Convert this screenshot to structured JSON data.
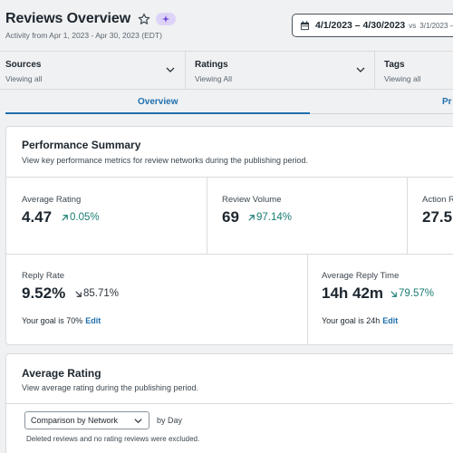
{
  "header": {
    "title": "Reviews Overview",
    "subtitle": "Activity from Apr 1, 2023 - Apr 30, 2023 (EDT)",
    "date_range": "4/1/2023 – 4/30/2023",
    "comparison_prefix": "vs",
    "comparison_range": "3/1/2023 –",
    "icons": {
      "favorite": "star-outline-icon",
      "ai": "sparkle-icon",
      "calendar": "calendar-icon"
    }
  },
  "filters": [
    {
      "label": "Sources",
      "value": "Viewing all"
    },
    {
      "label": "Ratings",
      "value": "Viewing All"
    },
    {
      "label": "Tags",
      "value": "Viewing all"
    }
  ],
  "tabs": [
    {
      "label": "Overview",
      "active": true
    },
    {
      "label": "Pr",
      "active": false
    }
  ],
  "performance": {
    "title": "Performance Summary",
    "description": "View key performance metrics for review networks during the publishing period.",
    "metrics": [
      {
        "label": "Average Rating",
        "value": "4.47",
        "change": "0.05%",
        "direction": "up"
      },
      {
        "label": "Review Volume",
        "value": "69",
        "change": "97.14%",
        "direction": "up"
      },
      {
        "label": "Action R",
        "value": "27.5",
        "change": "",
        "direction": ""
      },
      {
        "label": "Reply Rate",
        "value": "9.52%",
        "change": "85.71%",
        "direction": "down",
        "goal_text": "Your goal is 70%",
        "goal_edit": "Edit"
      },
      {
        "label": "Average Reply Time",
        "value": "14h 42m",
        "change": "79.57%",
        "direction": "down",
        "goal_text": "Your goal is 24h",
        "goal_edit": "Edit"
      }
    ]
  },
  "average_rating": {
    "title": "Average Rating",
    "description": "View average rating during the publishing period.",
    "select_value": "Comparison by Network",
    "by_label": "by Day",
    "note": "Deleted reviews and no rating reviews were excluded."
  },
  "colors": {
    "accent": "#1e6fae",
    "positive_change": "#1a7c72",
    "ai_badge": "#ddd3f7",
    "background": "#f0f1f2"
  }
}
